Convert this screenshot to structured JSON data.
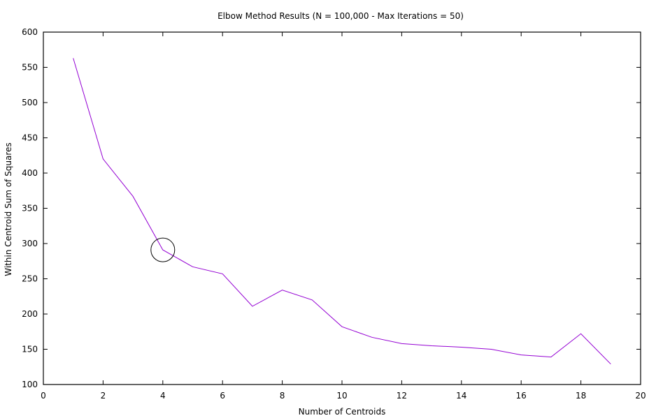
{
  "chart_data": {
    "type": "line",
    "title": "Elbow Method Results (N = 100,000 - Max Iterations = 50)",
    "xlabel": "Number of Centroids",
    "ylabel": "Within Centroid Sum of Squares",
    "xlim": [
      0,
      20
    ],
    "ylim": [
      100,
      600
    ],
    "xticks": [
      0,
      2,
      4,
      6,
      8,
      10,
      12,
      14,
      16,
      18,
      20
    ],
    "yticks": [
      100,
      150,
      200,
      250,
      300,
      350,
      400,
      450,
      500,
      550,
      600
    ],
    "grid": false,
    "series": [
      {
        "color": "#9400d3",
        "x": [
          1,
          2,
          3,
          4,
          5,
          6,
          7,
          8,
          9,
          10,
          11,
          12,
          13,
          14,
          15,
          16,
          17,
          18,
          19
        ],
        "y": [
          563,
          420,
          367,
          291,
          267,
          257,
          211,
          234,
          220,
          182,
          167,
          158,
          155,
          153,
          150,
          142,
          139,
          172,
          129
        ]
      }
    ],
    "annotations": [
      {
        "type": "circle",
        "x": 4,
        "y": 291,
        "color": "#000000"
      }
    ]
  }
}
